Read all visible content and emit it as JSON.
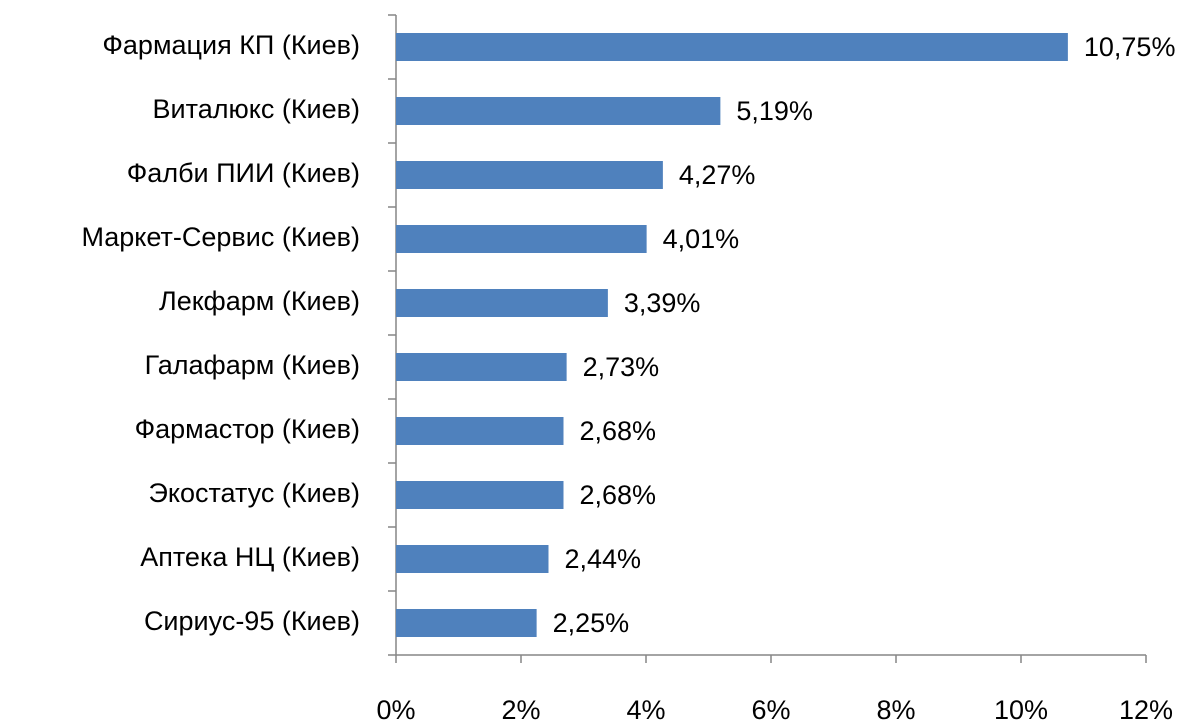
{
  "chart_data": {
    "type": "bar",
    "orientation": "horizontal",
    "categories": [
      "Фармация КП (Киев)",
      "Виталюкс (Киев)",
      "Фалби ПИИ (Киев)",
      "Маркет-Сервис (Киев)",
      "Лекфарм (Киев)",
      "Галафарм (Киев)",
      "Фармастор (Киев)",
      "Экостатус (Киев)",
      "Аптека НЦ (Киев)",
      "Сириус-95 (Киев)"
    ],
    "values": [
      10.75,
      5.19,
      4.27,
      4.01,
      3.39,
      2.73,
      2.68,
      2.68,
      2.44,
      2.25
    ],
    "value_labels": [
      "10,75%",
      "5,19%",
      "4,27%",
      "4,01%",
      "3,39%",
      "2,73%",
      "2,68%",
      "2,68%",
      "2,44%",
      "2,25%"
    ],
    "color": "#4f81bd",
    "xlim": [
      0,
      12
    ],
    "xticks": [
      {
        "value": 0,
        "label": "0%"
      },
      {
        "value": 2,
        "label": "2%"
      },
      {
        "value": 4,
        "label": "4%"
      },
      {
        "value": 6,
        "label": "6%"
      },
      {
        "value": 8,
        "label": "8%"
      },
      {
        "value": 10,
        "label": "10%"
      },
      {
        "value": 12,
        "label": "12%"
      }
    ],
    "grid": false
  }
}
